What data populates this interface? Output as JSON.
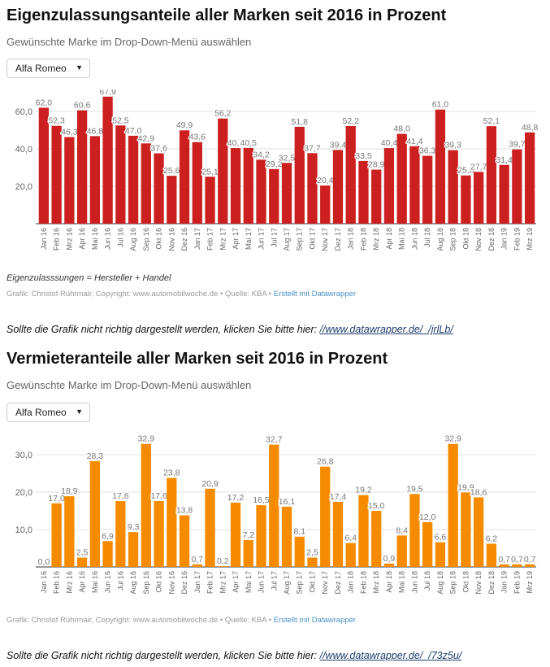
{
  "chart1": {
    "title": "Eigenzulassungsanteile aller Marken seit 2016 in Prozent",
    "subtitle": "Gewünschte Marke im Drop-Down-Menü auswählen",
    "dropdown_value": "Alfa Romeo",
    "note": "Eigenzulasssungen = Hersteller + Handel",
    "credit_text": "Grafik: Christof Rührmair, Copyright: www.automobilwoche.de • Quelle: KBA •",
    "credit_link": "Erstellt mit Datawrapper",
    "fallback_text": "Sollte die Grafik nicht richtig dargestellt werden, klicken Sie bitte hier:",
    "fallback_url": "//www.datawrapper.de/_/jrlLb/",
    "color": "#cc1f1f"
  },
  "chart2": {
    "title": "Vermieteranteile aller Marken seit 2016 in Prozent",
    "subtitle": "Gewünschte Marke im Drop-Down-Menü auswählen",
    "dropdown_value": "Alfa Romeo",
    "credit_text": "Grafik: Christof Rührmair, Copyright: www.automobilwoche.de • Quelle: KBA •",
    "credit_link": "Erstellt mit Datawrapper",
    "fallback_text": "Sollte die Grafik nicht richtig dargestellt werden, klicken Sie bitte hier:",
    "fallback_url": "//www.datawrapper.de/_/73z5u/",
    "color": "#f68b00"
  },
  "chart_data": [
    {
      "type": "bar",
      "title": "Eigenzulassungsanteile aller Marken seit 2016 in Prozent",
      "xlabel": "",
      "ylabel": "",
      "ylim": [
        0,
        70
      ],
      "yticks": [
        "20,0",
        "40,0",
        "60,0"
      ],
      "ytick_values": [
        20,
        40,
        60
      ],
      "categories": [
        "Jan 16",
        "Feb 16",
        "Mrz 16",
        "Apr 16",
        "Mai 16",
        "Jun 16",
        "Jul 16",
        "Aug 16",
        "Sep 16",
        "Okt 16",
        "Nov 16",
        "Dez 16",
        "Jan 17",
        "Feb 17",
        "Mrz 17",
        "Apr 17",
        "Mai 17",
        "Jun 17",
        "Jul 17",
        "Aug 17",
        "Sep 17",
        "Okt 17",
        "Nov 17",
        "Dez 17",
        "Jan 18",
        "Feb 18",
        "Mrz 18",
        "Apr 18",
        "Mai 18",
        "Jun 18",
        "Jul 18",
        "Aug 18",
        "Sep 18",
        "Okt 18",
        "Nov 18",
        "Dez 18",
        "Jan 19",
        "Feb 19",
        "Mrz 19"
      ],
      "values": [
        62.0,
        52.3,
        46.3,
        60.6,
        46.8,
        67.9,
        52.5,
        47.0,
        42.9,
        37.6,
        25.6,
        49.9,
        43.6,
        25.1,
        56.2,
        40.4,
        40.5,
        34.2,
        29.2,
        32.5,
        51.8,
        37.7,
        20.4,
        39.4,
        52.2,
        33.5,
        28.9,
        40.4,
        48.0,
        41.4,
        36.3,
        61.0,
        39.3,
        25.8,
        27.7,
        52.1,
        31.4,
        39.7,
        48.8
      ],
      "labels": [
        "62,0",
        "52,3",
        "46,3",
        "60,6",
        "46,8",
        "67,9",
        "52,5",
        "47,0",
        "42,9",
        "37,6",
        "25,6",
        "49,9",
        "43,6",
        "25,1",
        "56,2",
        "40,4",
        "40,5",
        "34,2",
        "29,2",
        "32,5",
        "51,8",
        "37,7",
        "20,4",
        "39,4",
        "52,2",
        "33,5",
        "28,9",
        "40,4",
        "48,0",
        "41,4",
        "36,3",
        "61,0",
        "39,3",
        "25,8",
        "27,7",
        "52,1",
        "31,4",
        "39,7",
        "48,8"
      ]
    },
    {
      "type": "bar",
      "title": "Vermieteranteile aller Marken seit 2016 in Prozent",
      "xlabel": "",
      "ylabel": "",
      "ylim": [
        0,
        35
      ],
      "yticks": [
        "10,0",
        "20,0",
        "30,0"
      ],
      "ytick_values": [
        10,
        20,
        30
      ],
      "categories": [
        "Jan 16",
        "Feb 16",
        "Mrz 16",
        "Apr 16",
        "Mai 16",
        "Jun 16",
        "Jul 16",
        "Aug 16",
        "Sep 16",
        "Okt 16",
        "Nov 16",
        "Dez 16",
        "Jan 17",
        "Feb 17",
        "Mrz 17",
        "Apr 17",
        "Mai 17",
        "Jun 17",
        "Jul 17",
        "Aug 17",
        "Sep 17",
        "Okt 17",
        "Nov 17",
        "Dez 17",
        "Jan 18",
        "Feb 18",
        "Mrz 18",
        "Apr 18",
        "Mai 18",
        "Jun 18",
        "Jul 18",
        "Aug 18",
        "Sep 18",
        "Okt 18",
        "Nov 18",
        "Dez 18",
        "Jan 19",
        "Feb 19",
        "Mrz 19"
      ],
      "values": [
        0.0,
        17.0,
        18.9,
        2.5,
        28.3,
        6.9,
        17.6,
        9.3,
        32.9,
        17.6,
        23.8,
        13.8,
        0.7,
        20.9,
        0.2,
        17.2,
        7.2,
        16.5,
        32.7,
        16.1,
        8.1,
        2.5,
        26.8,
        17.4,
        6.4,
        19.2,
        15.0,
        0.9,
        8.4,
        19.5,
        12.0,
        6.6,
        32.9,
        19.9,
        18.6,
        6.2,
        0.7,
        0.7,
        0.7
      ],
      "labels": [
        "0,0",
        "17,0",
        "18,9",
        "2,5",
        "28,3",
        "6,9",
        "17,6",
        "9,3",
        "32,9",
        "17,6",
        "23,8",
        "13,8",
        "0,7",
        "20,9",
        "0,2",
        "17,2",
        "7,2",
        "16,5",
        "32,7",
        "16,1",
        "8,1",
        "2,5",
        "26,8",
        "17,4",
        "6,4",
        "19,2",
        "15,0",
        "0,9",
        "8,4",
        "19,5",
        "12,0",
        "6,6",
        "32,9",
        "19,9",
        "18,6",
        "6,2",
        "0,7",
        "0,7",
        "0,7"
      ]
    }
  ]
}
